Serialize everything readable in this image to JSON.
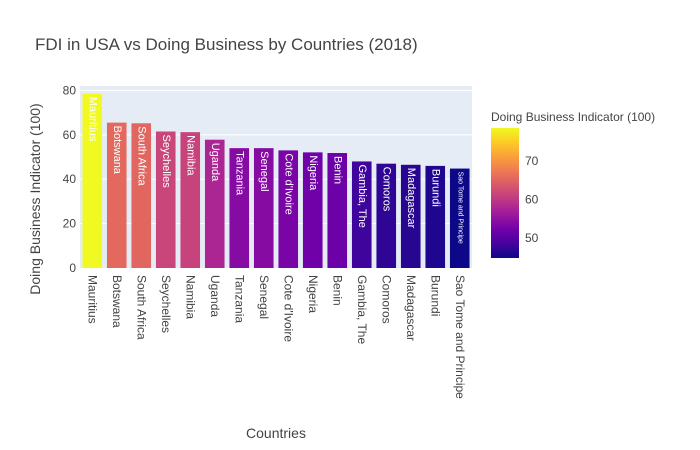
{
  "chart_data": {
    "type": "bar",
    "title": "FDI in USA vs Doing Business by Countries (2018)",
    "xlabel": "Countries",
    "ylabel": "Doing Business Indicator (100)",
    "ylim": [
      0,
      82
    ],
    "yticks": [
      0,
      20,
      40,
      60,
      80
    ],
    "grid": true,
    "categories": [
      "Mauritius",
      "Botswana",
      "South Africa",
      "Seychelles",
      "Namibia",
      "Uganda",
      "Tanzania",
      "Senegal",
      "Cote d'Ivoire",
      "Nigeria",
      "Benin",
      "Gambia, The",
      "Comoros",
      "Madagascar",
      "Burundi",
      "Sao Tome and Principe"
    ],
    "values": [
      78.5,
      65.5,
      65.2,
      61.5,
      61.2,
      57.8,
      54.0,
      54.0,
      53.0,
      52.1,
      51.8,
      48.0,
      47.0,
      46.5,
      46.0,
      44.8
    ],
    "colorbar": {
      "title": "Doing Business Indicator (100)",
      "ticks": [
        50,
        60,
        70
      ],
      "range": [
        44.8,
        78.5
      ],
      "colorscale": [
        "#0d0887",
        "#46039f",
        "#7201a8",
        "#9c179e",
        "#bd3786",
        "#d8576b",
        "#ed7953",
        "#fb9f3a",
        "#fdca26",
        "#f0f921"
      ]
    }
  }
}
